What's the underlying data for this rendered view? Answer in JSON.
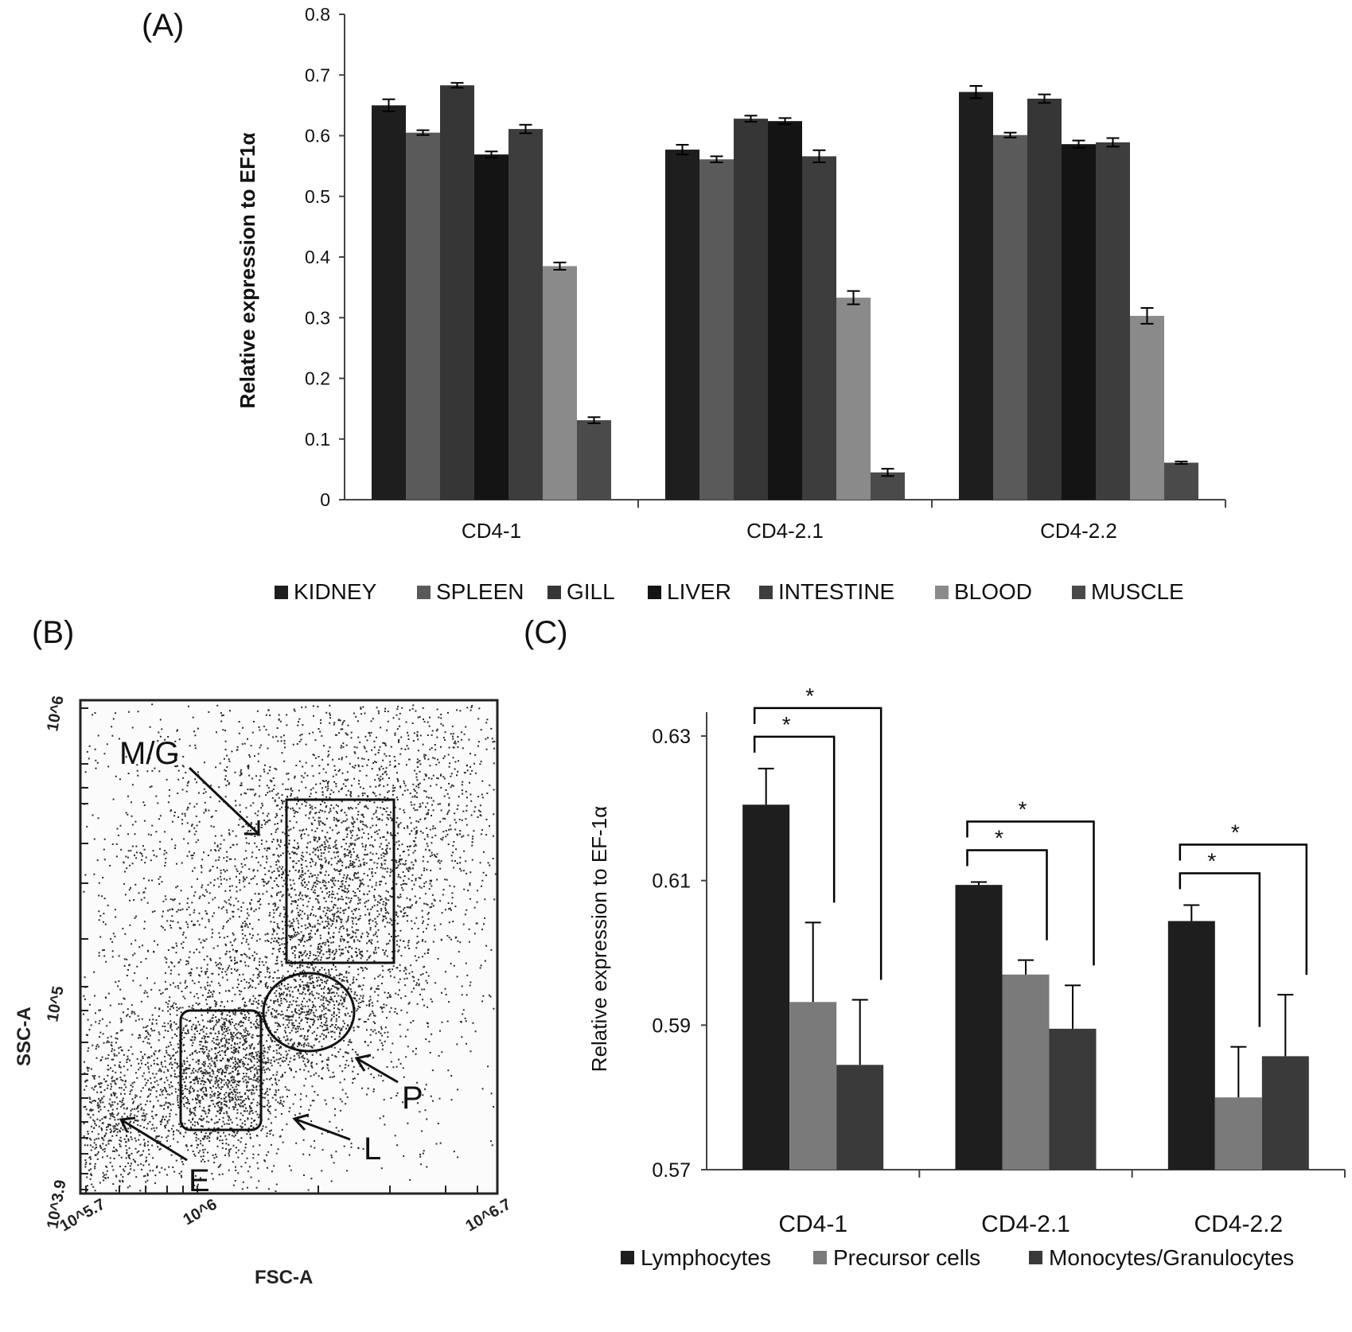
{
  "panel_labels": {
    "a": "(A)",
    "b": "(B)",
    "c": "(C)"
  },
  "chart_data": [
    {
      "id": "A",
      "type": "bar",
      "ylabel": "Relative expression to EF1α",
      "ylim": [
        0,
        0.8
      ],
      "yticks": [
        "0",
        "0.1",
        "0.2",
        "0.3",
        "0.4",
        "0.5",
        "0.6",
        "0.7",
        "0.8"
      ],
      "categories": [
        "CD4-1",
        "CD4-2.1",
        "CD4-2.2"
      ],
      "series": [
        {
          "name": "KIDNEY",
          "color": "#1e1e1e",
          "values": [
            0.65,
            0.577,
            0.672
          ],
          "errors": [
            0.01,
            0.008,
            0.01
          ]
        },
        {
          "name": "SPLEEN",
          "color": "#5a5a5a",
          "values": [
            0.605,
            0.561,
            0.601
          ],
          "errors": [
            0.004,
            0.005,
            0.004
          ]
        },
        {
          "name": "GILL",
          "color": "#363636",
          "values": [
            0.683,
            0.628,
            0.661
          ],
          "errors": [
            0.004,
            0.005,
            0.007
          ]
        },
        {
          "name": "LIVER",
          "color": "#141414",
          "values": [
            0.569,
            0.624,
            0.586
          ],
          "errors": [
            0.005,
            0.005,
            0.006
          ]
        },
        {
          "name": "INTESTINE",
          "color": "#3d3d3d",
          "values": [
            0.611,
            0.566,
            0.589
          ],
          "errors": [
            0.007,
            0.01,
            0.007
          ]
        },
        {
          "name": "BLOOD",
          "color": "#8a8a8a",
          "values": [
            0.385,
            0.333,
            0.303
          ],
          "errors": [
            0.006,
            0.011,
            0.013
          ]
        },
        {
          "name": "MUSCLE",
          "color": "#4a4a4a",
          "values": [
            0.131,
            0.045,
            0.061
          ],
          "errors": [
            0.005,
            0.006,
            0.002
          ]
        }
      ]
    },
    {
      "id": "C",
      "type": "bar",
      "ylabel": "Relative expression to EF-1α",
      "ylim": [
        0.57,
        0.63
      ],
      "yticks": [
        "0.57",
        "0.59",
        "0.61",
        "0.63"
      ],
      "categories": [
        "CD4-1",
        "CD4-2.1",
        "CD4-2.2"
      ],
      "series": [
        {
          "name": "Lymphocytes",
          "color": "#1e1e1e",
          "values": [
            0.6205,
            0.6094,
            0.6044
          ],
          "errors": [
            0.005,
            0.0004,
            0.0022
          ]
        },
        {
          "name": "Precursor cells",
          "color": "#7a7a7a",
          "values": [
            0.5932,
            0.597,
            0.58
          ],
          "errors": [
            0.011,
            0.002,
            0.007
          ]
        },
        {
          "name": "Monocytes/Granulocytes",
          "color": "#3a3a3a",
          "values": [
            0.5845,
            0.5895,
            0.5857
          ],
          "errors": [
            0.009,
            0.006,
            0.0085
          ]
        }
      ],
      "significance": [
        {
          "group": 0,
          "pairs": [
            [
              0,
              1,
              "*"
            ],
            [
              0,
              2,
              "*"
            ]
          ]
        },
        {
          "group": 1,
          "pairs": [
            [
              0,
              1,
              "*"
            ],
            [
              0,
              2,
              "*"
            ]
          ]
        },
        {
          "group": 2,
          "pairs": [
            [
              0,
              1,
              "*"
            ],
            [
              0,
              2,
              "*"
            ]
          ]
        }
      ]
    }
  ],
  "flow": {
    "xlabel": "FSC-A",
    "ylabel": "SSC-A",
    "x_ticks": [
      "10^5.7",
      "10^6",
      "10^6.7"
    ],
    "y_ticks": [
      "10^3.9",
      "10^5",
      "10^6"
    ],
    "gates": [
      "M/G",
      "P",
      "L",
      "E"
    ]
  }
}
